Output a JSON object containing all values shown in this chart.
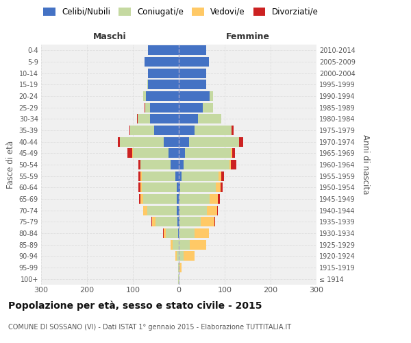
{
  "age_groups": [
    "100+",
    "95-99",
    "90-94",
    "85-89",
    "80-84",
    "75-79",
    "70-74",
    "65-69",
    "60-64",
    "55-59",
    "50-54",
    "45-49",
    "40-44",
    "35-39",
    "30-34",
    "25-29",
    "20-24",
    "15-19",
    "10-14",
    "5-9",
    "0-4"
  ],
  "birth_years": [
    "≤ 1914",
    "1915-1919",
    "1920-1924",
    "1925-1929",
    "1930-1934",
    "1935-1939",
    "1940-1944",
    "1945-1949",
    "1950-1954",
    "1955-1959",
    "1960-1964",
    "1965-1969",
    "1970-1974",
    "1975-1979",
    "1980-1984",
    "1985-1989",
    "1990-1994",
    "1995-1999",
    "2000-2004",
    "2005-2009",
    "2010-2014"
  ],
  "males": {
    "celibe": [
      0,
      0,
      0,
      0,
      2,
      3,
      4,
      5,
      5,
      8,
      18,
      22,
      33,
      53,
      63,
      62,
      72,
      67,
      67,
      75,
      67
    ],
    "coniugato": [
      1,
      2,
      5,
      13,
      27,
      48,
      65,
      72,
      76,
      73,
      65,
      78,
      95,
      53,
      27,
      11,
      5,
      1,
      0,
      0,
      0
    ],
    "vedovo": [
      0,
      0,
      3,
      5,
      4,
      7,
      8,
      6,
      3,
      2,
      1,
      1,
      0,
      0,
      0,
      0,
      0,
      0,
      0,
      0,
      0
    ],
    "divorziato": [
      0,
      0,
      0,
      0,
      1,
      1,
      1,
      3,
      4,
      5,
      4,
      11,
      5,
      2,
      1,
      1,
      0,
      0,
      0,
      0,
      0
    ]
  },
  "females": {
    "nubile": [
      0,
      0,
      0,
      0,
      0,
      1,
      1,
      2,
      3,
      6,
      10,
      14,
      22,
      35,
      42,
      52,
      67,
      59,
      59,
      65,
      60
    ],
    "coniugata": [
      1,
      2,
      10,
      24,
      35,
      47,
      60,
      65,
      78,
      80,
      100,
      100,
      110,
      80,
      50,
      22,
      8,
      1,
      0,
      0,
      0
    ],
    "vedova": [
      1,
      4,
      25,
      35,
      30,
      30,
      22,
      18,
      10,
      6,
      3,
      2,
      0,
      0,
      0,
      0,
      0,
      0,
      0,
      0,
      0
    ],
    "divorziata": [
      0,
      0,
      0,
      1,
      1,
      1,
      2,
      5,
      5,
      7,
      12,
      7,
      8,
      4,
      1,
      0,
      0,
      0,
      0,
      0,
      0
    ]
  },
  "colors": {
    "celibe": "#4472C4",
    "coniugato": "#c5d9a1",
    "vedovo": "#ffc966",
    "divorziato": "#cc2222"
  },
  "title": "Popolazione per età, sesso e stato civile - 2015",
  "subtitle": "COMUNE DI SOSSANO (VI) - Dati ISTAT 1° gennaio 2015 - Elaborazione TUTTITALIA.IT",
  "xlabel_left": "Maschi",
  "xlabel_right": "Femmine",
  "ylabel_left": "Fasce di età",
  "ylabel_right": "Anni di nascita",
  "xlim": 300,
  "background_color": "#ffffff",
  "plot_bg_color": "#f0f0f0",
  "grid_color": "#dddddd",
  "legend_labels": [
    "Celibi/Nubili",
    "Coniugati/e",
    "Vedovi/e",
    "Divorziati/e"
  ]
}
